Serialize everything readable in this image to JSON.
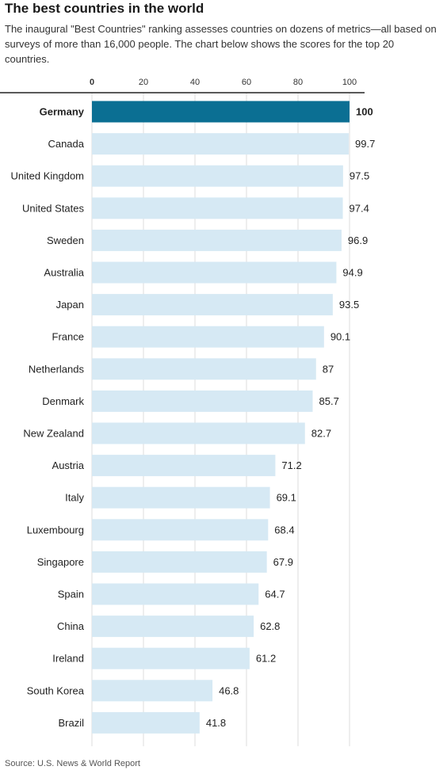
{
  "chart_data": {
    "type": "bar",
    "orientation": "horizontal",
    "title": "The best countries in the world",
    "subtitle": "The inaugural \"Best Countries\" ranking assesses countries on dozens of metrics—all based on surveys of more than 16,000 people. The chart below shows the scores for the top 20 countries.",
    "xlim": [
      0,
      100
    ],
    "xticks": [
      0,
      20,
      40,
      60,
      80,
      100
    ],
    "grid": true,
    "highlight": "Germany",
    "highlight_color": "#0b6f93",
    "bar_color": "#d6e9f4",
    "categories": [
      "Germany",
      "Canada",
      "United Kingdom",
      "United States",
      "Sweden",
      "Australia",
      "Japan",
      "France",
      "Netherlands",
      "Denmark",
      "New Zealand",
      "Austria",
      "Italy",
      "Luxembourg",
      "Singapore",
      "Spain",
      "China",
      "Ireland",
      "South Korea",
      "Brazil"
    ],
    "values": [
      100,
      99.7,
      97.5,
      97.4,
      96.9,
      94.9,
      93.5,
      90.1,
      87,
      85.7,
      82.7,
      71.2,
      69.1,
      68.4,
      67.9,
      64.7,
      62.8,
      61.2,
      46.8,
      41.8
    ],
    "value_labels": [
      "100",
      "99.7",
      "97.5",
      "97.4",
      "96.9",
      "94.9",
      "93.5",
      "90.1",
      "87",
      "85.7",
      "82.7",
      "71.2",
      "69.1",
      "68.4",
      "67.9",
      "64.7",
      "62.8",
      "61.2",
      "46.8",
      "41.8"
    ],
    "source": "Source: U.S. News & World Report"
  }
}
